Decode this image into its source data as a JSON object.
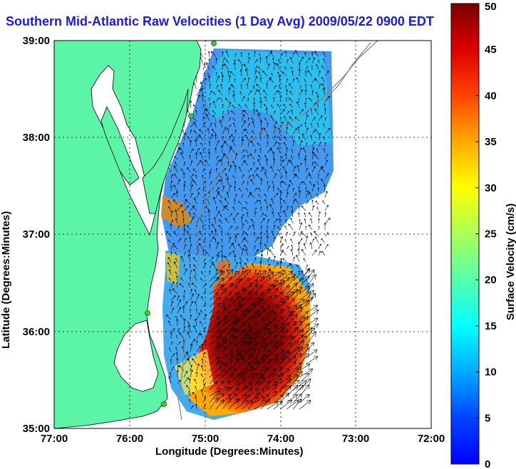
{
  "title": "Southern Mid-Atlantic Raw Velocities (1 Day Avg) 2009/05/22 0900 EDT",
  "x_axis": {
    "label": "Longitude (Degrees:Minutes)",
    "ticks": [
      "77:00",
      "76:00",
      "75:00",
      "74:00",
      "73:00",
      "72:00"
    ]
  },
  "y_axis": {
    "label": "Latitude (Degrees:Minutes)",
    "ticks": [
      "39:00",
      "38:00",
      "37:00",
      "36:00",
      "35:00"
    ]
  },
  "colorbar": {
    "label": "Surface Velocity (cm/s)",
    "ticks": [
      "50",
      "45",
      "40",
      "35",
      "30",
      "25",
      "20",
      "15",
      "10",
      "5",
      "0"
    ],
    "min": 0,
    "max": 50
  },
  "colors": {
    "land": "#5cf5a8",
    "title": "#1a1aee",
    "grid": "#000000",
    "station": "#22dd22"
  }
}
